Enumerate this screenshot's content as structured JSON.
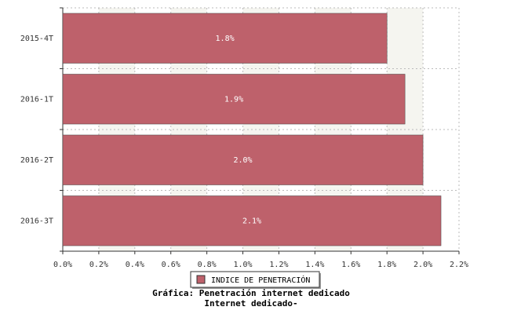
{
  "chart_data": {
    "type": "hbar",
    "title": "Gráfica: Penetración internet dedicado",
    "subtitle": "Internet dedicado-",
    "categories": [
      "2015-4T",
      "2016-1T",
      "2016-2T",
      "2016-3T"
    ],
    "series": [
      {
        "name": "INDICE DE PENETRACIÓN",
        "color": "#be616b",
        "values": [
          1.8,
          1.9,
          2.0,
          2.1
        ],
        "value_labels": [
          "1.8%",
          "1.9%",
          "2.0%",
          "2.1%"
        ]
      }
    ],
    "xlim": [
      0,
      2.2
    ],
    "xticks": [
      {
        "value": 0,
        "label": "0.0%"
      },
      {
        "value": 0.2,
        "label": "0.2%"
      },
      {
        "value": 0.4,
        "label": "0.4%"
      },
      {
        "value": 0.6,
        "label": "0.6%"
      },
      {
        "value": 0.8,
        "label": "0.8%"
      },
      {
        "value": 1.0,
        "label": "1.0%"
      },
      {
        "value": 1.2,
        "label": "1.2%"
      },
      {
        "value": 1.4,
        "label": "1.4%"
      },
      {
        "value": 1.6,
        "label": "1.6%"
      },
      {
        "value": 1.8,
        "label": "1.8%"
      },
      {
        "value": 2.0,
        "label": "2.0%"
      },
      {
        "value": 2.2,
        "label": "2.2%"
      }
    ],
    "grid": true,
    "legend": "bottom"
  }
}
